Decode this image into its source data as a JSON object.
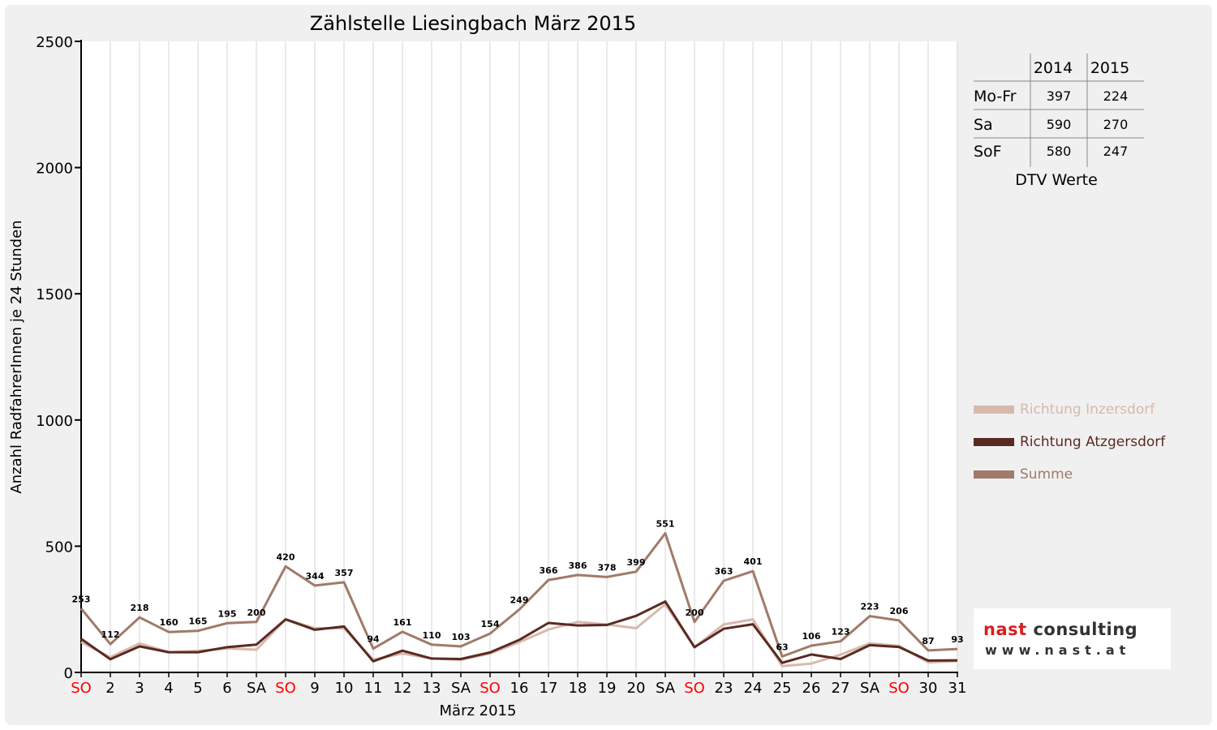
{
  "chart_data": {
    "type": "line",
    "title": "Zählstelle Liesingbach März 2015",
    "xlabel": "März 2015",
    "ylabel": "Anzahl RadfahrerInnen je 24 Stunden",
    "ylim": [
      0,
      2500
    ],
    "yticks": [
      "0",
      "500",
      "1000",
      "1500",
      "2000",
      "2500"
    ],
    "categories": [
      "SO",
      "2",
      "3",
      "4",
      "5",
      "6",
      "SA",
      "SO",
      "9",
      "10",
      "11",
      "12",
      "13",
      "SA",
      "SO",
      "16",
      "17",
      "18",
      "19",
      "20",
      "SA",
      "SO",
      "23",
      "24",
      "25",
      "26",
      "27",
      "SA",
      "SO",
      "30",
      "31"
    ],
    "category_colors": [
      "#ff0000",
      "#000000",
      "#000000",
      "#000000",
      "#000000",
      "#000000",
      "#000000",
      "#ff0000",
      "#000000",
      "#000000",
      "#000000",
      "#000000",
      "#000000",
      "#000000",
      "#ff0000",
      "#000000",
      "#000000",
      "#000000",
      "#000000",
      "#000000",
      "#000000",
      "#ff0000",
      "#000000",
      "#000000",
      "#000000",
      "#000000",
      "#000000",
      "#000000",
      "#ff0000",
      "#000000",
      "#000000"
    ],
    "grid": "vertical",
    "legend_position": "right",
    "series": [
      {
        "name": "Richtung Inzersdorf",
        "color": "#d7b9ac",
        "values": [
          120,
          60,
          115,
          80,
          85,
          95,
          90,
          210,
          175,
          175,
          50,
          75,
          55,
          50,
          75,
          120,
          170,
          200,
          190,
          175,
          270,
          100,
          190,
          210,
          25,
          35,
          70,
          115,
          105,
          40,
          45
        ],
        "labels": false
      },
      {
        "name": "Richtung Atzgersdorf",
        "color": "#5a2a22",
        "values": [
          133,
          52,
          103,
          80,
          80,
          100,
          110,
          210,
          169,
          182,
          44,
          86,
          55,
          53,
          79,
          129,
          196,
          186,
          188,
          224,
          281,
          100,
          173,
          191,
          38,
          71,
          53,
          108,
          101,
          47,
          48
        ],
        "labels": false
      },
      {
        "name": "Summe",
        "color": "#a07a6a",
        "values": [
          253,
          112,
          218,
          160,
          165,
          195,
          200,
          420,
          344,
          357,
          94,
          161,
          110,
          103,
          154,
          249,
          366,
          386,
          378,
          399,
          551,
          200,
          363,
          401,
          63,
          106,
          123,
          223,
          206,
          87,
          93
        ],
        "labels": true
      }
    ]
  },
  "dtv_table": {
    "headers": [
      "2014",
      "2015"
    ],
    "rows": [
      {
        "label": "Mo-Fr",
        "v2014": "397",
        "v2015": "224"
      },
      {
        "label": "Sa",
        "v2014": "590",
        "v2015": "270"
      },
      {
        "label": "SoF",
        "v2014": "580",
        "v2015": "247"
      }
    ],
    "caption": "DTV Werte"
  },
  "logo": {
    "name_part1": "nast",
    "name_part2": " consulting",
    "url": "www.nast.at"
  }
}
